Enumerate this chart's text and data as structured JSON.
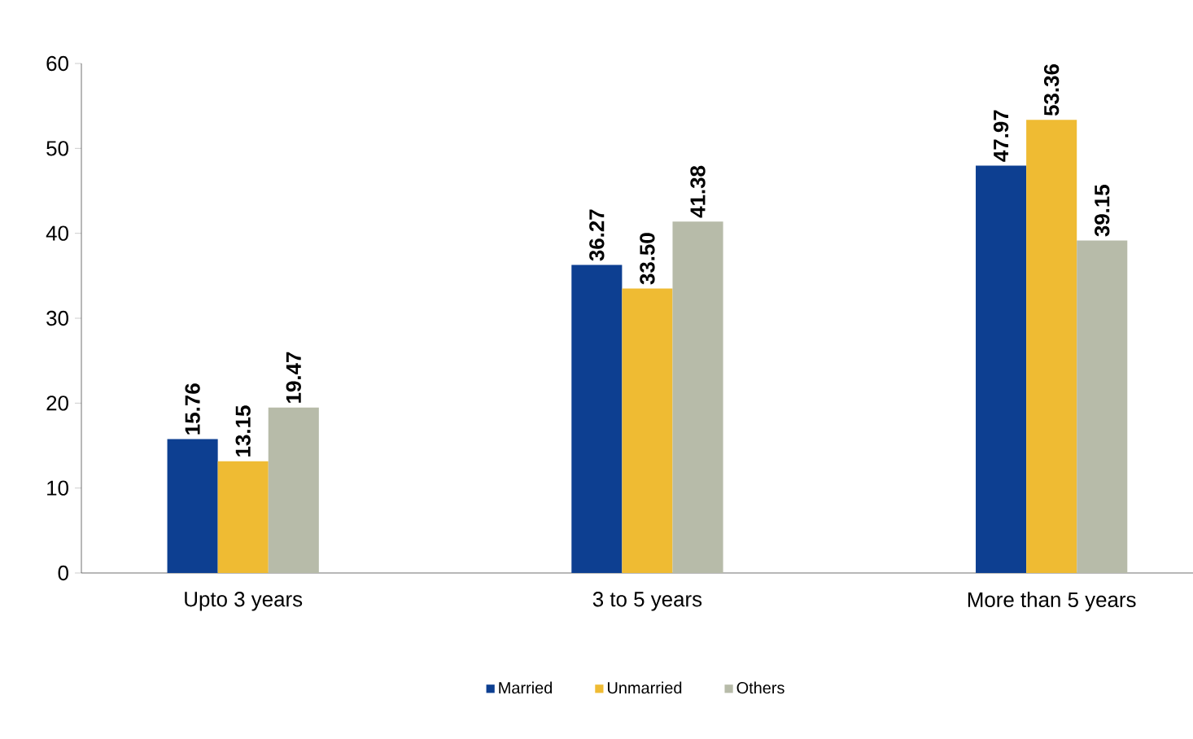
{
  "chart_data": {
    "type": "bar",
    "categories": [
      "Upto 3 years",
      "3 to 5 years",
      "More than 5 years"
    ],
    "series": [
      {
        "name": "Married",
        "color": "#0d3f91",
        "values": [
          15.76,
          36.27,
          47.97
        ],
        "value_labels": [
          "15.76",
          "36.27",
          "47.97"
        ]
      },
      {
        "name": "Unmarried",
        "color": "#efbb33",
        "values": [
          13.15,
          33.5,
          53.36
        ],
        "value_labels": [
          "13.15",
          "33.50",
          "53.36"
        ]
      },
      {
        "name": "Others",
        "color": "#b7bba9",
        "values": [
          19.47,
          41.38,
          39.15
        ],
        "value_labels": [
          "19.47",
          "41.38",
          "39.15"
        ]
      }
    ],
    "ylim": [
      0,
      60
    ],
    "yticks": [
      0,
      10,
      20,
      30,
      40,
      50,
      60
    ],
    "grid": false,
    "legend": "bottom"
  }
}
